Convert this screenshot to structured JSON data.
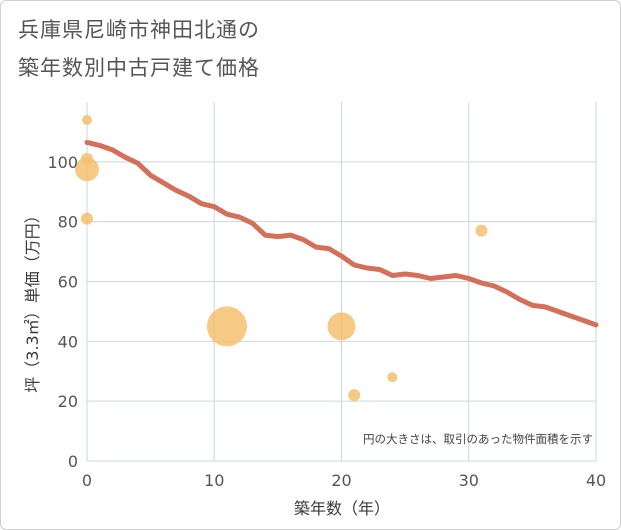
{
  "title_lines": [
    "兵庫県尼崎市神田北通の",
    "築年数別中古戸建て価格"
  ],
  "chart_data": {
    "type": "scatter+line",
    "title": "兵庫県尼崎市神田北通の築年数別中古戸建て価格",
    "xlabel": "築年数（年）",
    "ylabel": "坪（3.3㎡）単価（万円）",
    "xlim": [
      0,
      40
    ],
    "ylim": [
      0,
      120
    ],
    "xticks": [
      0,
      10,
      20,
      30,
      40
    ],
    "yticks": [
      0,
      20,
      40,
      60,
      80,
      100
    ],
    "grid": true,
    "note": "円の大きさは、取引のあった物件面積を示す",
    "colors": {
      "line": "#d4705a",
      "bubble": "#f5c06e",
      "grid": "#c9d7e3"
    },
    "line_series": {
      "name": "trend",
      "x": [
        0,
        1,
        2,
        3,
        4,
        5,
        6,
        7,
        8,
        9,
        10,
        11,
        12,
        13,
        14,
        15,
        16,
        17,
        18,
        19,
        20,
        21,
        22,
        23,
        24,
        25,
        26,
        27,
        28,
        29,
        30,
        31,
        32,
        33,
        34,
        35,
        36,
        37,
        38,
        39,
        40
      ],
      "y": [
        106.5,
        105.5,
        104,
        101.5,
        99.5,
        95.5,
        93,
        90.5,
        88.5,
        86,
        85,
        82.5,
        81.5,
        79.5,
        75.5,
        75,
        75.5,
        74,
        71.5,
        71,
        68.5,
        65.5,
        64.5,
        64,
        62,
        62.5,
        62,
        61,
        61.5,
        62,
        61,
        59.5,
        58.5,
        56.5,
        54,
        52,
        51.5,
        50,
        48.5,
        47,
        45.5
      ]
    },
    "bubbles": [
      {
        "x": 0,
        "y": 114,
        "size": 5
      },
      {
        "x": 0,
        "y": 101,
        "size": 6
      },
      {
        "x": 0,
        "y": 97.5,
        "size": 12
      },
      {
        "x": 0,
        "y": 81,
        "size": 6
      },
      {
        "x": 11,
        "y": 45,
        "size": 20
      },
      {
        "x": 20,
        "y": 45,
        "size": 14
      },
      {
        "x": 21,
        "y": 22,
        "size": 6
      },
      {
        "x": 24,
        "y": 28,
        "size": 5
      },
      {
        "x": 31,
        "y": 77,
        "size": 6
      }
    ]
  }
}
